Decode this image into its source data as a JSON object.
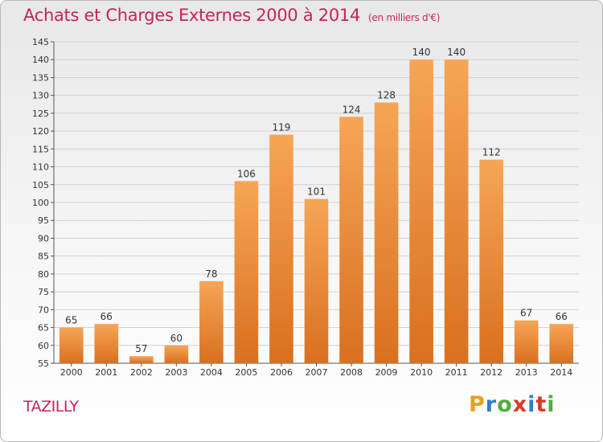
{
  "title": "Achats et Charges Externes 2000 à 2014",
  "unit_note": "(en milliers d'€)",
  "commune": "TAZILLY",
  "logo": {
    "letters": [
      "P",
      "r",
      "o",
      "x",
      "i",
      "t",
      "i"
    ],
    "colors": [
      "#e8a020",
      "#2f7fc9",
      "#4fae3a",
      "#d63a2a",
      "#2f7fc9",
      "#d63a2a",
      "#4fae3a"
    ]
  },
  "colors": {
    "bar_light": "#f6a557",
    "bar_dark": "#d9701f",
    "title": "#c8235a"
  },
  "chart_data": {
    "type": "bar",
    "title": "Achats et Charges Externes 2000 à 2014",
    "xlabel": "",
    "ylabel": "",
    "categories": [
      "2000",
      "2001",
      "2002",
      "2003",
      "2004",
      "2005",
      "2006",
      "2007",
      "2008",
      "2009",
      "2010",
      "2011",
      "2012",
      "2013",
      "2014"
    ],
    "values": [
      65,
      66,
      57,
      60,
      78,
      106,
      119,
      101,
      124,
      128,
      140,
      140,
      112,
      67,
      66
    ],
    "ylim": [
      55,
      145
    ],
    "yticks": [
      55,
      60,
      65,
      70,
      75,
      80,
      85,
      90,
      95,
      100,
      105,
      110,
      115,
      120,
      125,
      130,
      135,
      140,
      145
    ],
    "grid": true
  }
}
